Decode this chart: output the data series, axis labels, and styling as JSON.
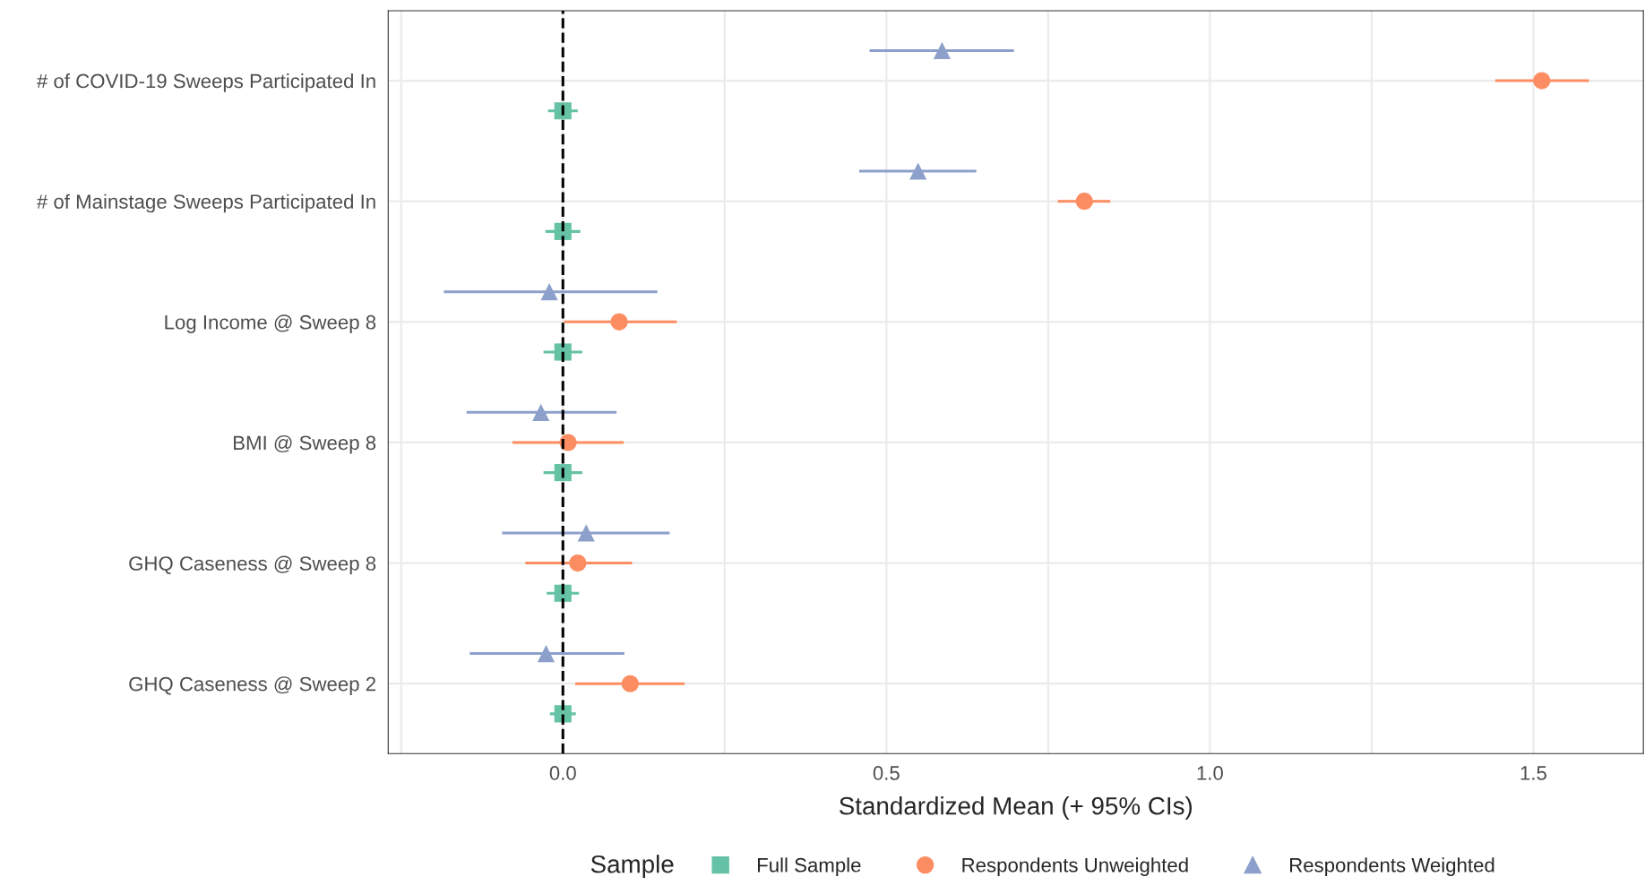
{
  "chart_data": {
    "type": "scatter",
    "orientation": "horizontal",
    "xlabel": "Standardized Mean (+ 95% CIs)",
    "legend_title": "Sample",
    "legend": "bottom",
    "grid": true,
    "categories": [
      "# of COVID-19 Sweeps Participated In",
      "# of Mainstage Sweeps Participated In",
      "Log Income @ Sweep 8",
      "BMI @ Sweep 8",
      "GHQ Caseness @ Sweep 8",
      "GHQ Caseness @ Sweep 2"
    ],
    "xlim": [
      -0.27,
      1.67
    ],
    "xticks": [
      {
        "value": -0.25,
        "label": null
      },
      {
        "value": 0,
        "label": "0.0"
      },
      {
        "value": 0.25,
        "label": null
      },
      {
        "value": 0.5,
        "label": "0.5"
      },
      {
        "value": 0.75,
        "label": null
      },
      {
        "value": 1,
        "label": "1.0"
      },
      {
        "value": 1.25,
        "label": null
      },
      {
        "value": 1.5,
        "label": "1.5"
      }
    ],
    "ref_lines": [
      {
        "axis": "x",
        "value": 0,
        "color": "#000000",
        "line_style": "dashed"
      }
    ],
    "series": [
      {
        "name": "Full Sample",
        "color": "#66c2a5",
        "marker": "square",
        "values": [
          0,
          0,
          0,
          0,
          0,
          0
        ],
        "errors": [
          0.023,
          0.027,
          0.03,
          0.03,
          0.025,
          0.02
        ]
      },
      {
        "name": "Respondents Unweighted",
        "color": "#fc8d62",
        "marker": "circle",
        "values": [
          1.513,
          0.806,
          0.087,
          0.008,
          0.023,
          0.104
        ],
        "errors": [
          [
            1.441,
            1.586
          ],
          [
            0.765,
            0.846
          ],
          [
            0.002,
            0.176
          ],
          [
            -0.078,
            0.094
          ],
          [
            -0.058,
            0.107
          ],
          [
            0.019,
            0.188
          ]
        ]
      },
      {
        "name": "Respondents Weighted",
        "color": "#8da0cb",
        "marker": "triangle",
        "values": [
          0.586,
          0.549,
          -0.021,
          -0.034,
          0.036,
          -0.026
        ],
        "errors": [
          [
            0.474,
            0.697
          ],
          [
            0.458,
            0.639
          ],
          [
            -0.184,
            0.146
          ],
          [
            -0.149,
            0.083
          ],
          [
            -0.094,
            0.165
          ],
          [
            -0.144,
            0.095
          ]
        ]
      }
    ]
  }
}
